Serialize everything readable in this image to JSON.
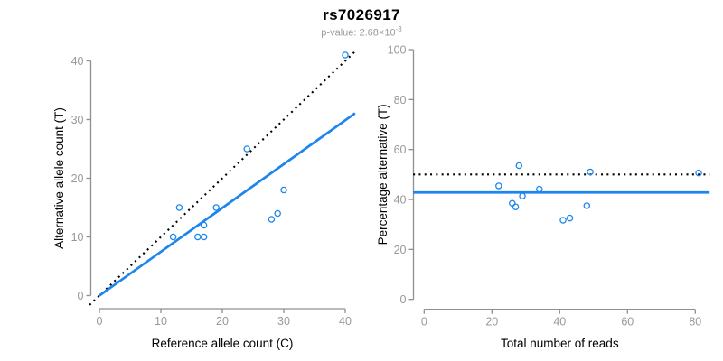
{
  "header": {
    "title": "rs7026917",
    "subtitle_prefix": "p-value: 2.68×10",
    "subtitle_exponent": "-3"
  },
  "colors": {
    "accent_blue": "#1C86EE",
    "reference_black": "#000000",
    "axis_gray": "#8f8f8f",
    "tick_label_gray": "#999999",
    "axis_title_black": "#000000"
  },
  "chart_data": [
    {
      "type": "scatter",
      "panel": "left",
      "xlabel": "Reference allele count (C)",
      "ylabel": "Alternative allele count (T)",
      "xlim": [
        0,
        40
      ],
      "ylim": [
        0,
        40
      ],
      "xticks": [
        0,
        10,
        20,
        30,
        40
      ],
      "yticks": [
        0,
        10,
        20,
        30,
        40
      ],
      "grid": false,
      "points": [
        [
          12,
          10
        ],
        [
          13,
          15
        ],
        [
          16,
          10
        ],
        [
          17,
          10
        ],
        [
          17,
          12
        ],
        [
          19,
          15
        ],
        [
          24,
          25
        ],
        [
          28,
          13
        ],
        [
          29,
          14
        ],
        [
          30,
          18
        ],
        [
          40,
          41
        ]
      ],
      "lines": [
        {
          "name": "identity-line",
          "style": "dotted",
          "color": "#000000",
          "slope": 1,
          "intercept": 0
        },
        {
          "name": "fit-line",
          "style": "solid",
          "color": "#1C86EE",
          "slope": 0.747,
          "intercept": 0,
          "x_from": 0
        }
      ]
    },
    {
      "type": "scatter",
      "panel": "right",
      "xlabel": "Total number of reads",
      "ylabel": "Percentage alternative (T)",
      "xlim": [
        0,
        80
      ],
      "ylim": [
        0,
        100
      ],
      "xticks": [
        0,
        20,
        40,
        60,
        80
      ],
      "yticks": [
        0,
        20,
        40,
        60,
        80,
        100
      ],
      "grid": false,
      "points": [
        [
          22,
          45.45
        ],
        [
          26,
          38.46
        ],
        [
          27,
          37.04
        ],
        [
          28,
          53.57
        ],
        [
          29,
          41.38
        ],
        [
          34,
          44.12
        ],
        [
          41,
          31.71
        ],
        [
          43,
          32.56
        ],
        [
          48,
          37.5
        ],
        [
          49,
          51.02
        ],
        [
          81,
          50.62
        ]
      ],
      "lines": [
        {
          "name": "null-line",
          "style": "dotted",
          "color": "#000000",
          "hline": 50
        },
        {
          "name": "fit-line",
          "style": "solid",
          "color": "#1C86EE",
          "hline": 42.8
        }
      ]
    }
  ]
}
